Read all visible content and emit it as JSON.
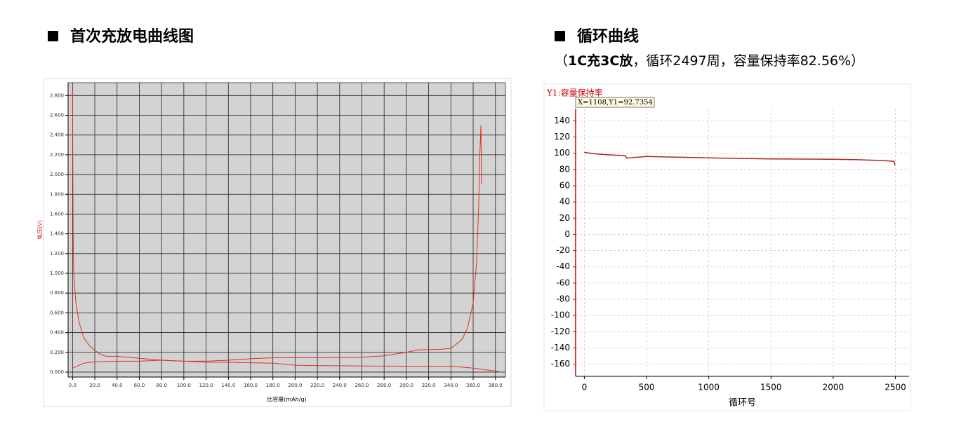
{
  "chart_data": [
    {
      "type": "line",
      "title": "首次充放电曲线图",
      "xlabel": "比容量(mAh/g)",
      "ylabel": "电压(V)",
      "xlim": [
        -4,
        389
      ],
      "ylim": [
        -0.05,
        2.93
      ],
      "grid": true,
      "xticks": [
        {
          "value": 0,
          "label": "0.0"
        },
        {
          "value": 20,
          "label": "20.0"
        },
        {
          "value": 40,
          "label": "40.0"
        },
        {
          "value": 60,
          "label": "60.0"
        },
        {
          "value": 80,
          "label": "80.0"
        },
        {
          "value": 100,
          "label": "100.0"
        },
        {
          "value": 120,
          "label": "120.0"
        },
        {
          "value": 140,
          "label": "140.0"
        },
        {
          "value": 160,
          "label": "160.0"
        },
        {
          "value": 180,
          "label": "180.0"
        },
        {
          "value": 200,
          "label": "200.0"
        },
        {
          "value": 220,
          "label": "220.0"
        },
        {
          "value": 240,
          "label": "240.0"
        },
        {
          "value": 260,
          "label": "260.0"
        },
        {
          "value": 280,
          "label": "280.0"
        },
        {
          "value": 300,
          "label": "300.0"
        },
        {
          "value": 320,
          "label": "320.0"
        },
        {
          "value": 340,
          "label": "340.0"
        },
        {
          "value": 360,
          "label": "360.0"
        },
        {
          "value": 380,
          "label": "380.0"
        }
      ],
      "yticks": [
        {
          "value": 0,
          "label": "0.000"
        },
        {
          "value": 0.2,
          "label": "0.200"
        },
        {
          "value": 0.4,
          "label": "0.400"
        },
        {
          "value": 0.6,
          "label": "0.600"
        },
        {
          "value": 0.8,
          "label": "0.800"
        },
        {
          "value": 1.0,
          "label": "1.000"
        },
        {
          "value": 1.2,
          "label": "1.200"
        },
        {
          "value": 1.4,
          "label": "1.400"
        },
        {
          "value": 1.6,
          "label": "1.600"
        },
        {
          "value": 1.8,
          "label": "1.800"
        },
        {
          "value": 2.0,
          "label": "2.000"
        },
        {
          "value": 2.2,
          "label": "2.200"
        },
        {
          "value": 2.4,
          "label": "2.400"
        },
        {
          "value": 2.6,
          "label": "2.600"
        },
        {
          "value": 2.8,
          "label": "2.800"
        }
      ],
      "series": [
        {
          "color": "#e03020",
          "x": [
            0,
            0.5,
            1,
            3,
            6,
            10,
            15,
            20,
            25,
            30,
            40,
            60,
            80,
            100,
            120,
            140,
            160,
            180,
            200,
            220,
            260,
            300,
            340,
            360,
            380,
            385
          ],
          "values": [
            2.85,
            1.5,
            1.0,
            0.7,
            0.5,
            0.35,
            0.27,
            0.22,
            0.18,
            0.16,
            0.16,
            0.14,
            0.12,
            0.11,
            0.1,
            0.1,
            0.095,
            0.09,
            0.07,
            0.065,
            0.062,
            0.06,
            0.06,
            0.04,
            0.01,
            0.0
          ]
        },
        {
          "color": "#e03020",
          "x": [
            0,
            10,
            20,
            40,
            60,
            80,
            100,
            120,
            140,
            160,
            180,
            200,
            260,
            280,
            300,
            310,
            330,
            340,
            350,
            355,
            360,
            363,
            365,
            366,
            367,
            367.5
          ],
          "values": [
            0.04,
            0.09,
            0.105,
            0.11,
            0.11,
            0.12,
            0.11,
            0.11,
            0.12,
            0.135,
            0.145,
            0.145,
            0.15,
            0.165,
            0.2,
            0.225,
            0.23,
            0.24,
            0.33,
            0.45,
            0.7,
            1.1,
            1.7,
            2.2,
            2.5,
            1.9
          ]
        }
      ]
    },
    {
      "type": "line",
      "title": "循环曲线",
      "subtitle": [
        "（",
        "1C充3C放",
        "，循环2497周，容量保持率82.56%）"
      ],
      "y_title": "Y1:容量保持率",
      "annotation": "X=1108,Y1=92.7354",
      "xlabel": "循环号",
      "xlim": [
        -70,
        2610
      ],
      "ylim": [
        -175,
        155
      ],
      "grid": true,
      "xticks": [
        0,
        500,
        1000,
        1500,
        2000,
        2500
      ],
      "yticks": [
        -160,
        -140,
        -120,
        -100,
        -80,
        -60,
        -40,
        -20,
        0,
        20,
        40,
        60,
        80,
        100,
        120,
        140
      ],
      "series": [
        {
          "color": "#b22222",
          "x": [
            0,
            100,
            200,
            330,
            340,
            500,
            800,
            1100,
            1500,
            2000,
            2200,
            2400,
            2490,
            2497
          ],
          "values": [
            101,
            99,
            98,
            97,
            94,
            96,
            95,
            94,
            93,
            92.5,
            92,
            91,
            90,
            85
          ]
        }
      ]
    }
  ]
}
